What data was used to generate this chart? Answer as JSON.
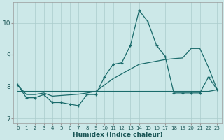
{
  "xlabel": "Humidex (Indice chaleur)",
  "bg_color": "#cce8e8",
  "grid_color": "#aacccc",
  "line_color": "#1a6b6b",
  "xlim": [
    -0.5,
    23.5
  ],
  "ylim": [
    6.85,
    10.65
  ],
  "yticks": [
    7,
    8,
    9,
    10
  ],
  "xticks": [
    0,
    1,
    2,
    3,
    4,
    5,
    6,
    7,
    8,
    9,
    10,
    11,
    12,
    13,
    14,
    15,
    16,
    17,
    18,
    19,
    20,
    21,
    22,
    23
  ],
  "series_main": [
    8.05,
    7.65,
    7.65,
    7.75,
    7.5,
    7.5,
    7.45,
    7.4,
    7.75,
    7.75,
    8.3,
    8.7,
    8.75,
    9.3,
    10.4,
    10.05,
    9.3,
    8.95,
    7.8,
    7.8,
    7.8,
    7.8,
    8.3,
    7.9
  ],
  "series_avg": [
    8.05,
    7.75,
    7.75,
    7.8,
    7.7,
    7.72,
    7.74,
    7.76,
    7.8,
    7.85,
    8.05,
    8.25,
    8.4,
    8.55,
    8.7,
    8.75,
    8.8,
    8.85,
    8.88,
    8.9,
    9.2,
    9.2,
    8.6,
    7.9
  ],
  "series_trend": [
    7.85,
    7.85,
    7.85,
    7.85,
    7.85,
    7.85,
    7.85,
    7.85,
    7.85,
    7.85,
    7.85,
    7.85,
    7.85,
    7.85,
    7.85,
    7.85,
    7.85,
    7.85,
    7.85,
    7.85,
    7.85,
    7.85,
    7.85,
    7.9
  ]
}
